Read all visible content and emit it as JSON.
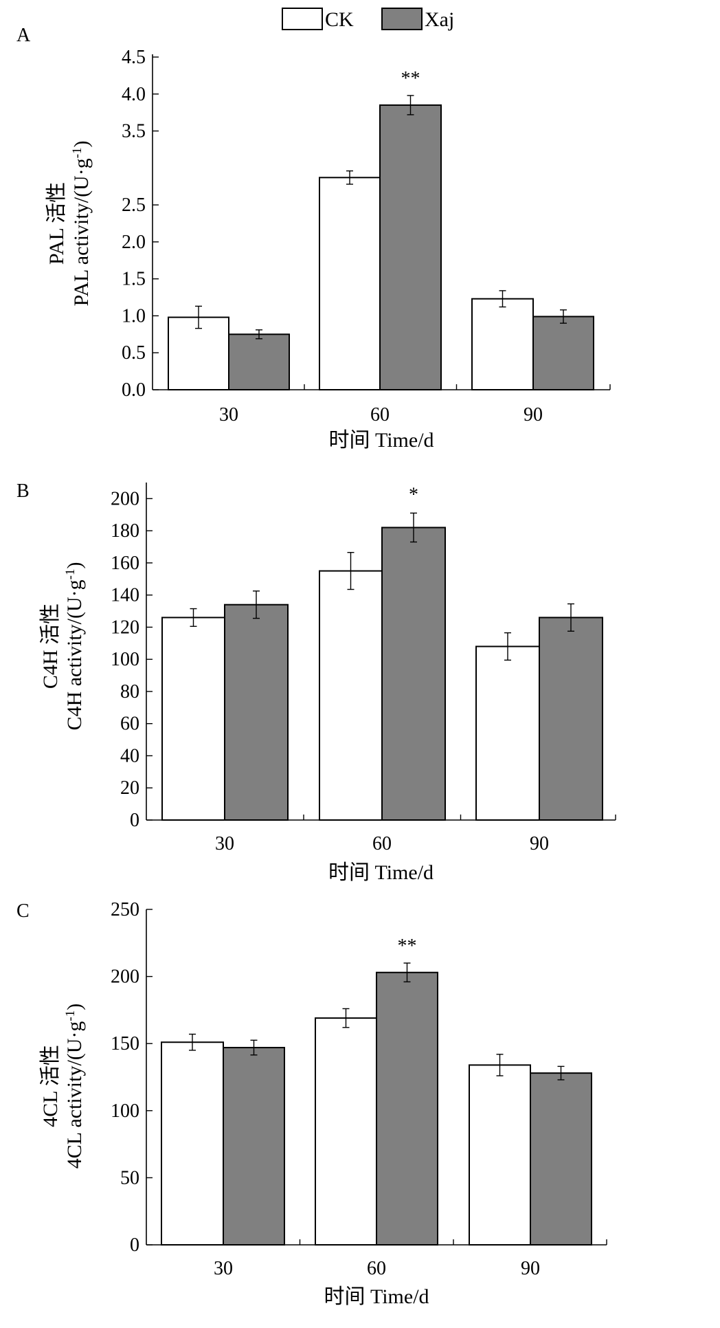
{
  "legend": {
    "items": [
      {
        "label": "CK",
        "color": "#ffffff"
      },
      {
        "label": "Xaj",
        "color": "#808080"
      }
    ]
  },
  "chart_data": [
    {
      "type": "bar",
      "panel": "A",
      "categories": [
        "30",
        "60",
        "90"
      ],
      "series": [
        {
          "name": "CK",
          "values": [
            0.98,
            2.87,
            1.23
          ],
          "errors": [
            0.15,
            0.09,
            0.11
          ]
        },
        {
          "name": "Xaj",
          "values": [
            0.75,
            3.85,
            0.99
          ],
          "errors": [
            0.06,
            0.13,
            0.09
          ]
        }
      ],
      "significance": [
        {
          "category": "60",
          "series": "Xaj",
          "mark": "**"
        }
      ],
      "yticks": [
        {
          "value": 0.0,
          "label": "0.0"
        },
        {
          "value": 0.5,
          "label": "0.5"
        },
        {
          "value": 1.0,
          "label": "1.0"
        },
        {
          "value": 1.5,
          "label": "1.5"
        },
        {
          "value": 2.0,
          "label": "2.0"
        },
        {
          "value": 2.5,
          "label": "2.5"
        },
        {
          "value": 3.5,
          "label": "3.5"
        },
        {
          "value": 4.0,
          "label": "4.0"
        },
        {
          "value": 4.5,
          "label": "4.5"
        }
      ],
      "ylim": [
        0,
        4.5
      ],
      "ylabel_line1": "PAL 活性",
      "ylabel_line2": "PAL activity/(U·g",
      "ylabel_sup": "-1",
      "ylabel_close": ")",
      "xlabel": "时间 Time/d",
      "grid": false
    },
    {
      "type": "bar",
      "panel": "B",
      "categories": [
        "30",
        "60",
        "90"
      ],
      "series": [
        {
          "name": "CK",
          "values": [
            126,
            155,
            108
          ],
          "errors": [
            5.5,
            11.5,
            8.5
          ]
        },
        {
          "name": "Xaj",
          "values": [
            134,
            182,
            126
          ],
          "errors": [
            8.5,
            9.0,
            8.5
          ]
        }
      ],
      "significance": [
        {
          "category": "60",
          "series": "Xaj",
          "mark": "*"
        }
      ],
      "yticks": [
        {
          "value": 0,
          "label": "0"
        },
        {
          "value": 20,
          "label": "20"
        },
        {
          "value": 40,
          "label": "40"
        },
        {
          "value": 60,
          "label": "60"
        },
        {
          "value": 80,
          "label": "80"
        },
        {
          "value": 100,
          "label": "100"
        },
        {
          "value": 120,
          "label": "120"
        },
        {
          "value": 140,
          "label": "140"
        },
        {
          "value": 160,
          "label": "160"
        },
        {
          "value": 180,
          "label": "180"
        },
        {
          "value": 200,
          "label": "200"
        }
      ],
      "ylim": [
        0,
        210
      ],
      "ylabel_line1": "C4H 活性",
      "ylabel_line2": "C4H activity/(U·g",
      "ylabel_sup": "-1",
      "ylabel_close": ")",
      "xlabel": "时间 Time/d",
      "grid": false
    },
    {
      "type": "bar",
      "panel": "C",
      "categories": [
        "30",
        "60",
        "90"
      ],
      "series": [
        {
          "name": "CK",
          "values": [
            151,
            169,
            134
          ],
          "errors": [
            6,
            7,
            8
          ]
        },
        {
          "name": "Xaj",
          "values": [
            147,
            203,
            128
          ],
          "errors": [
            5.5,
            7,
            5
          ]
        }
      ],
      "significance": [
        {
          "category": "60",
          "series": "Xaj",
          "mark": "**"
        }
      ],
      "yticks": [
        {
          "value": 0,
          "label": "0"
        },
        {
          "value": 50,
          "label": "50"
        },
        {
          "value": 100,
          "label": "100"
        },
        {
          "value": 150,
          "label": "150"
        },
        {
          "value": 200,
          "label": "200"
        },
        {
          "value": 250,
          "label": "250"
        }
      ],
      "ylim": [
        0,
        250
      ],
      "ylabel_line1": "4CL 活性",
      "ylabel_line2": "4CL activity/(U·g",
      "ylabel_sup": "-1",
      "ylabel_close": ")",
      "xlabel": "时间 Time/d",
      "grid": false
    }
  ]
}
